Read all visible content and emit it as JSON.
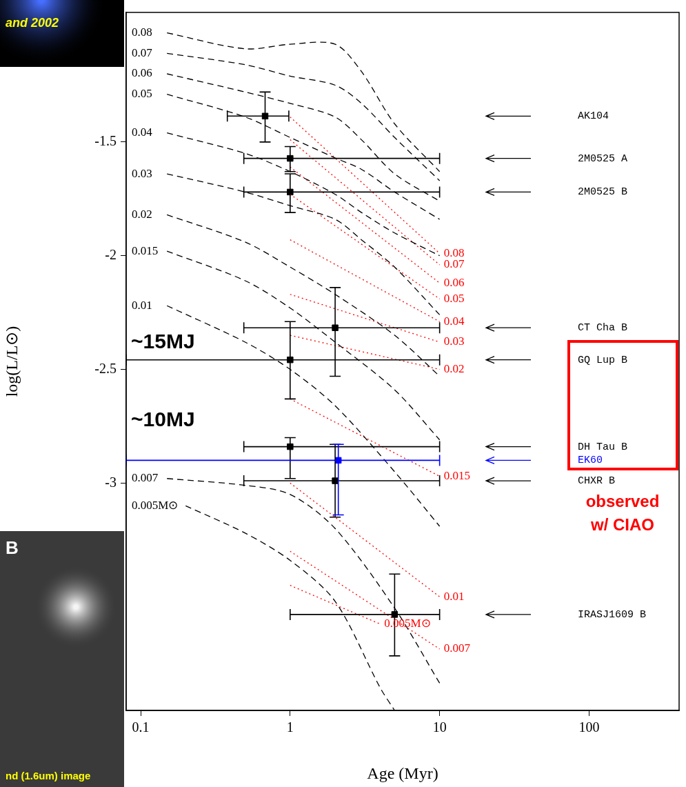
{
  "chart_data": {
    "type": "scatter",
    "x_label": "Age (Myr)",
    "y_label": "log(L/L⊙)",
    "log": "x",
    "xlim": [
      0.08,
      400
    ],
    "xticks": [
      0.1,
      1,
      10,
      100
    ],
    "ylim": [
      -4.0,
      -0.93
    ],
    "yticks": [
      -3,
      -2.5,
      -2,
      -1.5
    ],
    "grid": false,
    "series": [
      {
        "name": "0.08",
        "type": "line",
        "color": "#000000",
        "line_style": "dashed",
        "x": [
          0.15,
          0.5,
          1,
          2,
          3,
          5,
          10
        ],
        "values": [
          -1.02,
          -1.09,
          -1.07,
          -1.07,
          -1.19,
          -1.42,
          -1.63
        ]
      },
      {
        "name": "0.07",
        "type": "line",
        "color": "#000000",
        "line_style": "dashed",
        "x": [
          0.15,
          0.5,
          1,
          2,
          3,
          5,
          10
        ],
        "values": [
          -1.11,
          -1.16,
          -1.21,
          -1.25,
          -1.33,
          -1.48,
          -1.67
        ]
      },
      {
        "name": "0.06",
        "type": "line",
        "color": "#000000",
        "line_style": "dashed",
        "x": [
          0.15,
          0.5,
          1,
          2,
          3,
          5,
          10
        ],
        "values": [
          -1.2,
          -1.28,
          -1.33,
          -1.39,
          -1.49,
          -1.64,
          -1.76
        ]
      },
      {
        "name": "0.05",
        "type": "line",
        "color": "#000000",
        "line_style": "dashed",
        "x": [
          0.15,
          0.5,
          1,
          2,
          3,
          5,
          10
        ],
        "values": [
          -1.29,
          -1.39,
          -1.48,
          -1.57,
          -1.62,
          -1.72,
          -1.84
        ]
      },
      {
        "name": "0.04",
        "type": "line",
        "color": "#000000",
        "line_style": "dashed",
        "x": [
          0.15,
          0.5,
          1,
          2,
          3,
          5,
          10
        ],
        "values": [
          -1.46,
          -1.55,
          -1.63,
          -1.73,
          -1.81,
          -1.9,
          -2.0
        ]
      },
      {
        "name": "0.03",
        "type": "line",
        "color": "#000000",
        "line_style": "dashed",
        "x": [
          0.15,
          0.5,
          1,
          2,
          3,
          5,
          10
        ],
        "values": [
          -1.64,
          -1.72,
          -1.78,
          -1.84,
          -1.93,
          -2.05,
          -2.26
        ]
      },
      {
        "name": "0.02",
        "type": "line",
        "color": "#000000",
        "line_style": "dashed",
        "x": [
          0.15,
          0.5,
          1,
          2,
          5,
          10
        ],
        "values": [
          -1.82,
          -1.94,
          -2.05,
          -2.17,
          -2.35,
          -2.53
        ]
      },
      {
        "name": "0.015",
        "type": "line",
        "color": "#000000",
        "line_style": "dashed",
        "x": [
          0.15,
          0.5,
          1,
          2,
          5,
          10
        ],
        "values": [
          -1.98,
          -2.11,
          -2.23,
          -2.38,
          -2.59,
          -2.81
        ]
      },
      {
        "name": "0.01",
        "type": "line",
        "color": "#000000",
        "line_style": "dashed",
        "x": [
          0.15,
          0.5,
          1,
          2,
          5,
          10
        ],
        "values": [
          -2.22,
          -2.38,
          -2.5,
          -2.66,
          -2.95,
          -3.19
        ]
      },
      {
        "name": "0.007",
        "type": "line",
        "color": "#000000",
        "line_style": "dashed",
        "x": [
          0.15,
          0.5,
          1,
          2,
          5,
          10
        ],
        "values": [
          -2.98,
          -3.01,
          -3.05,
          -3.2,
          -3.55,
          -3.88
        ]
      },
      {
        "name": "0.005M⊙",
        "type": "line",
        "color": "#000000",
        "line_style": "dashed",
        "x": [
          0.2,
          0.5,
          1,
          2,
          4,
          5
        ],
        "values": [
          -3.1,
          -3.22,
          -3.34,
          -3.52,
          -3.9,
          -4.0
        ]
      },
      {
        "name": "0.08",
        "type": "line",
        "color": "#ff0000",
        "line_style": "dotted",
        "x": [
          1,
          10
        ],
        "values": [
          -1.39,
          -1.99
        ]
      },
      {
        "name": "0.07",
        "type": "line",
        "color": "#ff0000",
        "line_style": "dotted",
        "x": [
          1,
          10
        ],
        "values": [
          -1.49,
          -2.04
        ]
      },
      {
        "name": "0.06",
        "type": "line",
        "color": "#ff0000",
        "line_style": "dotted",
        "x": [
          1,
          10
        ],
        "values": [
          -1.61,
          -2.12
        ]
      },
      {
        "name": "0.05",
        "type": "line",
        "color": "#ff0000",
        "line_style": "dotted",
        "x": [
          1,
          10
        ],
        "values": [
          -1.73,
          -2.19
        ]
      },
      {
        "name": "0.04",
        "type": "line",
        "color": "#ff0000",
        "line_style": "dotted",
        "x": [
          1,
          10
        ],
        "values": [
          -1.93,
          -2.29
        ]
      },
      {
        "name": "0.03",
        "type": "line",
        "color": "#ff0000",
        "line_style": "dotted",
        "x": [
          1,
          10
        ],
        "values": [
          -2.17,
          -2.38
        ]
      },
      {
        "name": "0.02",
        "type": "line",
        "color": "#ff0000",
        "line_style": "dotted",
        "x": [
          1,
          10
        ],
        "values": [
          -2.35,
          -2.5
        ]
      },
      {
        "name": "0.015",
        "type": "line",
        "color": "#ff0000",
        "line_style": "dotted",
        "x": [
          1,
          10
        ],
        "values": [
          -2.63,
          -2.97
        ]
      },
      {
        "name": "0.01",
        "type": "line",
        "color": "#ff0000",
        "line_style": "dotted",
        "x": [
          1,
          10
        ],
        "values": [
          -3.0,
          -3.5
        ]
      },
      {
        "name": "0.007",
        "type": "line",
        "color": "#ff0000",
        "line_style": "dotted",
        "x": [
          1,
          10
        ],
        "values": [
          -3.3,
          -3.73
        ]
      },
      {
        "name": "0.005M⊙",
        "type": "line",
        "color": "#ff0000",
        "line_style": "dotted",
        "x": [
          1,
          4
        ],
        "values": [
          -3.45,
          -3.62
        ]
      },
      {
        "name": "AK104",
        "type": "scatter",
        "marker": "square",
        "color": "#000000",
        "x": [
          0.68
        ],
        "values": [
          -1.386
        ],
        "x_error": [
          [
            0.38,
            0.98
          ]
        ],
        "y_error": [
          [
            -1.5,
            -1.28
          ]
        ]
      },
      {
        "name": "2M0525 A",
        "type": "scatter",
        "marker": "square",
        "color": "#000000",
        "x": [
          1.0
        ],
        "values": [
          -1.572
        ],
        "x_error": [
          [
            0.49,
            10
          ]
        ],
        "y_error": [
          [
            -1.63,
            -1.52
          ]
        ]
      },
      {
        "name": "2M0525 B",
        "type": "scatter",
        "marker": "square",
        "color": "#000000",
        "x": [
          1.0
        ],
        "values": [
          -1.72
        ],
        "x_error": [
          [
            0.49,
            10
          ]
        ],
        "y_error": [
          [
            -1.81,
            -1.64
          ]
        ]
      },
      {
        "name": "CT Cha B",
        "type": "scatter",
        "marker": "square",
        "color": "#000000",
        "x": [
          2.0
        ],
        "values": [
          -2.317
        ],
        "x_error": [
          [
            0.49,
            10
          ]
        ],
        "y_error": [
          [
            -2.53,
            -2.14
          ]
        ]
      },
      {
        "name": "GQ Lup B",
        "type": "scatter",
        "marker": "square",
        "color": "#000000",
        "x": [
          1.0
        ],
        "values": [
          -2.458
        ],
        "x_error": [
          [
            0.08,
            10
          ]
        ],
        "y_error": [
          [
            -2.63,
            -2.29
          ]
        ]
      },
      {
        "name": "DH Tau B",
        "type": "scatter",
        "marker": "square",
        "color": "#000000",
        "x": [
          1.0
        ],
        "values": [
          -2.84
        ],
        "x_error": [
          [
            0.49,
            10
          ]
        ],
        "y_error": [
          [
            -2.98,
            -2.8
          ]
        ]
      },
      {
        "name": "CHXR B",
        "type": "scatter",
        "marker": "square",
        "color": "#000000",
        "x": [
          2.0
        ],
        "values": [
          -2.99
        ],
        "x_error": [
          [
            0.49,
            10
          ]
        ],
        "y_error": [
          [
            -3.15,
            -2.83
          ]
        ]
      },
      {
        "name": "IRASJ1609 B",
        "type": "scatter",
        "marker": "square",
        "color": "#000000",
        "x": [
          5.0
        ],
        "values": [
          -3.578
        ],
        "x_error": [
          [
            1,
            10
          ]
        ],
        "y_error": [
          [
            -3.76,
            -3.4
          ]
        ]
      },
      {
        "name": "EK60",
        "type": "scatter",
        "marker": "square",
        "color": "#0000ff",
        "x": [
          2.1
        ],
        "values": [
          -2.9
        ],
        "x_error": [
          [
            0.08,
            10
          ]
        ],
        "y_error": [
          [
            -3.14,
            -2.83
          ]
        ]
      }
    ],
    "annotations": [
      {
        "text": "~15MJ",
        "color": "#000000"
      },
      {
        "text": "~10MJ",
        "color": "#000000"
      },
      {
        "text": [
          "observed",
          "w/ CIAO"
        ],
        "color": "#ff0000"
      },
      {
        "text": "and 2002",
        "color": "#ffff00"
      },
      {
        "text": "B",
        "color": "#ffffff"
      },
      {
        "text": "nd (1.6um) image",
        "color": "#ffff00"
      }
    ]
  }
}
